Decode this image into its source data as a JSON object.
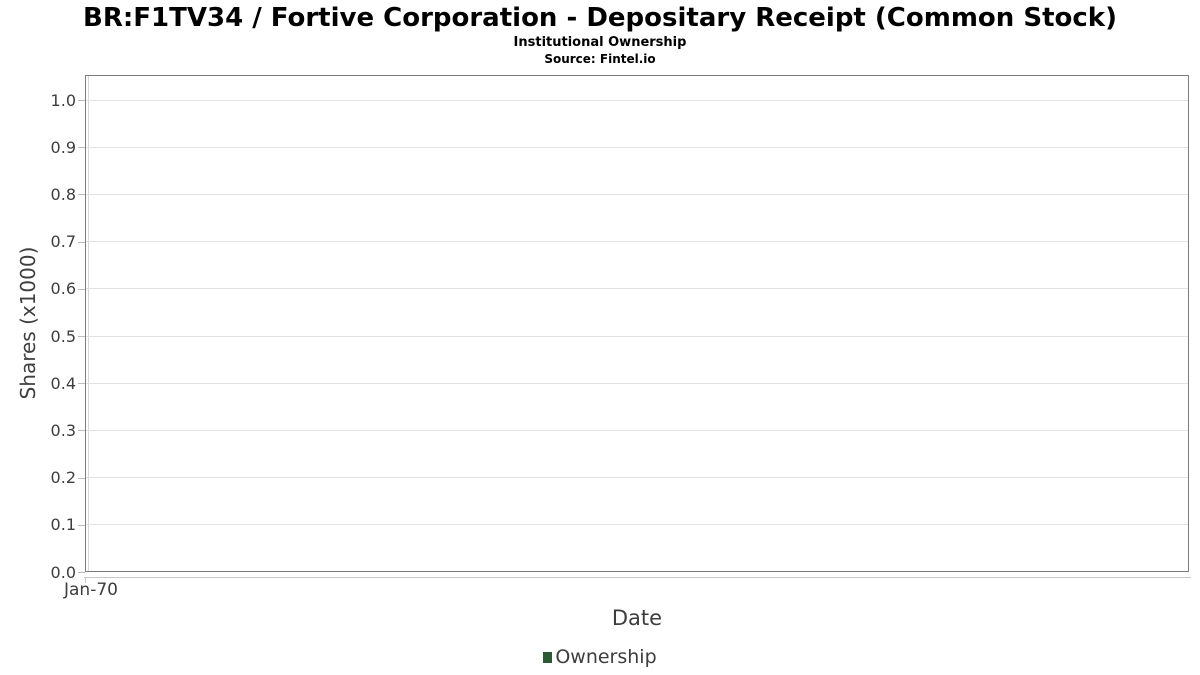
{
  "chart_data": {
    "type": "line",
    "title": "BR:F1TV34 / Fortive Corporation - Depositary Receipt (Common Stock)",
    "subtitle": "Institutional Ownership",
    "source_label": "Source: Fintel.io",
    "xlabel": "Date",
    "ylabel": "Shares (x1000)",
    "x_ticks": [
      "Jan-70"
    ],
    "y_ticks": [
      "1.0",
      "0.9",
      "0.8",
      "0.7",
      "0.6",
      "0.5",
      "0.4",
      "0.3",
      "0.2",
      "0.1",
      "0.0"
    ],
    "ylim": [
      0.0,
      1.05
    ],
    "grid": true,
    "legend": {
      "position": "bottom",
      "entries": [
        {
          "label": "Ownership",
          "color": "#2b5a35"
        }
      ]
    },
    "series": [
      {
        "name": "Ownership",
        "x": [],
        "values": []
      }
    ]
  }
}
